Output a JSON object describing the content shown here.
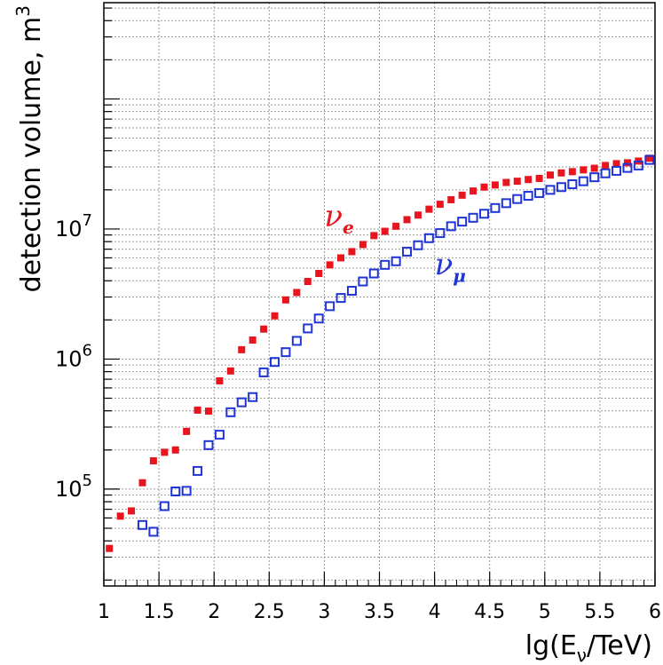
{
  "chart_data": {
    "type": "scatter",
    "title": "",
    "xlabel": "lg(Eν/TeV)",
    "xlabel_parts": {
      "main": "lg(E",
      "sub": "ν",
      "tail": "/TeV)"
    },
    "ylabel": "detection volume, m³",
    "ylabel_parts": {
      "main": "detection volume, m",
      "sup": "3"
    },
    "xlim": [
      1,
      6
    ],
    "ylim": [
      18000,
      550000000
    ],
    "yscale": "log",
    "grid": true,
    "xticks": [
      {
        "value": 1,
        "label": "1"
      },
      {
        "value": 1.5,
        "label": "1.5"
      },
      {
        "value": 2,
        "label": "2"
      },
      {
        "value": 2.5,
        "label": "2.5"
      },
      {
        "value": 3,
        "label": "3"
      },
      {
        "value": 3.5,
        "label": "3.5"
      },
      {
        "value": 4,
        "label": "4"
      },
      {
        "value": 4.5,
        "label": "4.5"
      },
      {
        "value": 5,
        "label": "5"
      },
      {
        "value": 5.5,
        "label": "5.5"
      },
      {
        "value": 6,
        "label": "6"
      }
    ],
    "yticks": [
      {
        "value": 100000,
        "base": "10",
        "exp": "5"
      },
      {
        "value": 1000000,
        "base": "10",
        "exp": "6"
      },
      {
        "value": 10000000,
        "base": "10",
        "exp": "7"
      }
    ],
    "series": [
      {
        "name": "ν e",
        "label_main": "ν",
        "label_sub": "e",
        "label_at": [
          3.0,
          10500000
        ],
        "color": "#e8141e",
        "marker": "filled-square",
        "x": [
          1.05,
          1.15,
          1.25,
          1.35,
          1.45,
          1.55,
          1.65,
          1.75,
          1.85,
          1.95,
          2.05,
          2.15,
          2.25,
          2.35,
          2.45,
          2.55,
          2.65,
          2.75,
          2.85,
          2.95,
          3.05,
          3.15,
          3.25,
          3.35,
          3.45,
          3.55,
          3.65,
          3.75,
          3.85,
          3.95,
          4.05,
          4.15,
          4.25,
          4.35,
          4.45,
          4.55,
          4.65,
          4.75,
          4.85,
          4.95,
          5.05,
          5.15,
          5.25,
          5.35,
          5.45,
          5.55,
          5.65,
          5.75,
          5.85,
          5.95
        ],
        "y": [
          35000,
          62000,
          68000,
          112000,
          165000,
          192000,
          200000,
          278000,
          405000,
          398000,
          680000,
          810000,
          1180000,
          1400000,
          1700000,
          2150000,
          2850000,
          3250000,
          3950000,
          4550000,
          5300000,
          6000000,
          6700000,
          7600000,
          8900000,
          9600000,
          10500000,
          11800000,
          12800000,
          14200000,
          15500000,
          16800000,
          18200000,
          19600000,
          21000000,
          21800000,
          22800000,
          23300000,
          24000000,
          24500000,
          26000000,
          27000000,
          27600000,
          28500000,
          29300000,
          30800000,
          31800000,
          32300000,
          33300000,
          35000000
        ]
      },
      {
        "name": "ν μ",
        "label_main": "ν",
        "label_sub": "μ",
        "label_at": [
          4.0,
          4450000
        ],
        "color": "#1f35d6",
        "marker": "open-square",
        "x": [
          1.35,
          1.45,
          1.55,
          1.65,
          1.75,
          1.85,
          1.95,
          2.05,
          2.15,
          2.25,
          2.35,
          2.45,
          2.55,
          2.65,
          2.75,
          2.85,
          2.95,
          3.05,
          3.15,
          3.25,
          3.35,
          3.45,
          3.55,
          3.65,
          3.75,
          3.85,
          3.95,
          4.05,
          4.15,
          4.25,
          4.35,
          4.45,
          4.55,
          4.65,
          4.75,
          4.85,
          4.95,
          5.05,
          5.15,
          5.25,
          5.35,
          5.45,
          5.55,
          5.65,
          5.75,
          5.85,
          5.95
        ],
        "y": [
          53000,
          47000,
          74000,
          96000,
          97000,
          138000,
          218000,
          262000,
          390000,
          465000,
          510000,
          790000,
          950000,
          1130000,
          1380000,
          1720000,
          2050000,
          2550000,
          2950000,
          3350000,
          3950000,
          4550000,
          5300000,
          5650000,
          6700000,
          7500000,
          8500000,
          9300000,
          10500000,
          11400000,
          12200000,
          13100000,
          14500000,
          15800000,
          17000000,
          18000000,
          18900000,
          20000000,
          21000000,
          22100000,
          23300000,
          25000000,
          26800000,
          28000000,
          29500000,
          30800000,
          34000000
        ]
      }
    ]
  }
}
